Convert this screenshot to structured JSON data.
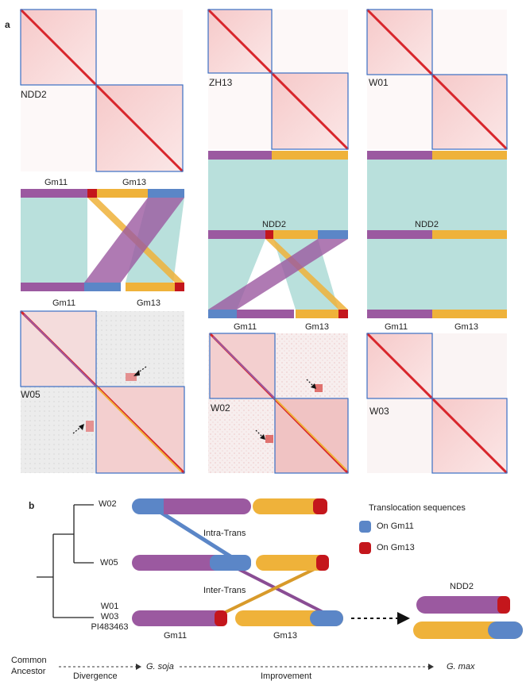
{
  "panels": {
    "a": "a",
    "b": "b"
  },
  "colors": {
    "gm11": "#9b59a0",
    "gm13": "#efb23a",
    "blue": "#5b86c7",
    "red": "#c4161c",
    "teal": "#b9e0dc",
    "frame": "#3a6fc4"
  },
  "heatmaps": [
    {
      "name": "NDD2",
      "top_chr": "Gm11",
      "right_chr": "Gm13"
    },
    {
      "name": "ZH13"
    },
    {
      "name": "W01"
    },
    {
      "name": "W05"
    },
    {
      "name": "W02"
    },
    {
      "name": "W03"
    }
  ],
  "synteny": {
    "left": {
      "bottom_left": "Gm11",
      "bottom_right": "Gm13"
    },
    "middle": {
      "mid_label": "NDD2",
      "bottom_left": "Gm11",
      "bottom_right": "Gm13"
    },
    "right": {
      "mid_label": "NDD2",
      "bottom_left": "Gm11",
      "bottom_right": "Gm13"
    }
  },
  "tree": {
    "w02": "W02",
    "w05": "W05",
    "group1": "W01",
    "group2": "W03",
    "group3": "PI483463",
    "intra": "Intra-Trans",
    "inter": "Inter-Trans",
    "gm11": "Gm11",
    "gm13": "Gm13",
    "ndd2": "NDD2"
  },
  "legend": {
    "title": "Translocation sequences",
    "on_gm11": "On Gm11",
    "on_gm13": "On Gm13"
  },
  "timeline": {
    "common1": "Common",
    "common2": "Ancestor",
    "divergence": "Divergence",
    "soja": "G. soja",
    "improvement": "Improvement",
    "max": "G. max"
  }
}
